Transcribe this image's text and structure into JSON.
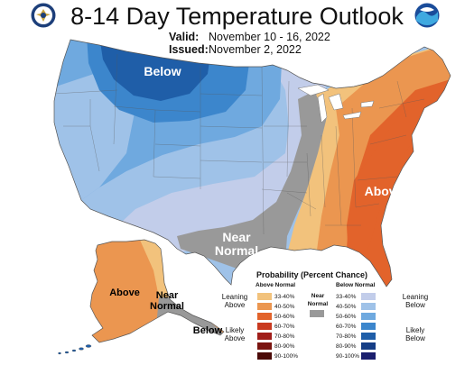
{
  "header": {
    "title": "8-14 Day Temperature Outlook",
    "valid_label": "Valid:",
    "valid_value": "November 10 - 16, 2022",
    "issued_label": "Issued:",
    "issued_value": "November 2, 2022"
  },
  "logos": {
    "left": "commerce-seal-icon",
    "right": "noaa-logo-icon"
  },
  "map_labels": {
    "below": "Below",
    "near_normal_line1": "Near",
    "near_normal_line2": "Normal",
    "above_east": "Above",
    "alaska_above": "Above",
    "alaska_near_line1": "Near",
    "alaska_near_line2": "Normal",
    "aleutian_below": "Below"
  },
  "legend": {
    "title": "Probability (Percent Chance)",
    "above_header": "Above Normal",
    "below_header": "Below Normal",
    "near_header_line1": "Near",
    "near_header_line2": "Normal",
    "leaning_above_line1": "Leaning",
    "leaning_above_line2": "Above",
    "likely_above_line1": "Likely",
    "likely_above_line2": "Above",
    "leaning_below_line1": "Leaning",
    "leaning_below_line2": "Below",
    "likely_below_line1": "Likely",
    "likely_below_line2": "Below",
    "ranges": [
      "33-40%",
      "40-50%",
      "50-60%",
      "60-70%",
      "70-80%",
      "80-90%",
      "90-100%"
    ],
    "above_colors": [
      "#F2C27C",
      "#EB9650",
      "#E2632B",
      "#C93A20",
      "#A01E1A",
      "#7A1410",
      "#4B0A08"
    ],
    "below_colors": [
      "#C2CDEA",
      "#9FC2E8",
      "#6FA9DF",
      "#3C86CC",
      "#1F5EA8",
      "#163E86",
      "#1B1F6E"
    ],
    "near_color": "#999999"
  },
  "colors": {
    "above_33_40": "#F2C27C",
    "above_40_50": "#EB9650",
    "above_50_60": "#E2632B",
    "below_33_40": "#C2CDEA",
    "below_40_50": "#9FC2E8",
    "below_50_60": "#6FA9DF",
    "below_60_70": "#3C86CC",
    "below_70_80": "#1F5EA8",
    "near_normal": "#999999"
  }
}
